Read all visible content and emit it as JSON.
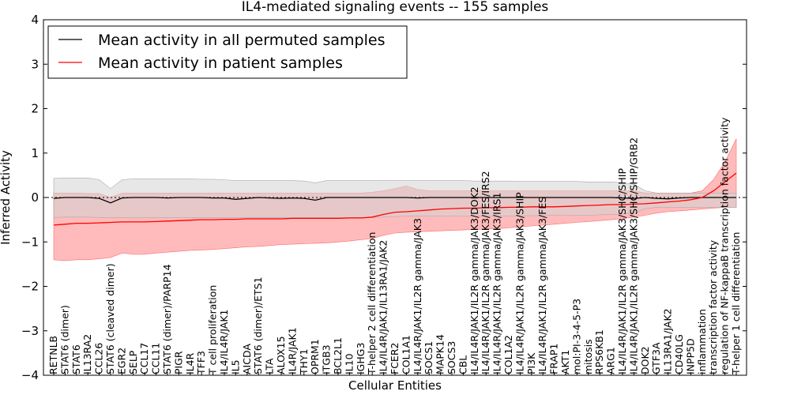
{
  "chart_data": {
    "type": "line",
    "title": "IL4-mediated signaling events -- 155 samples",
    "xlabel": "Cellular Entities",
    "ylabel": "Inferred Activity",
    "ylim": [
      -4,
      4
    ],
    "yticks": [
      -4,
      -3,
      -2,
      -1,
      0,
      1,
      2,
      3,
      4
    ],
    "legend": {
      "placement": "top-left",
      "entries": [
        {
          "label": "Mean activity in all permuted samples",
          "color": "#000000"
        },
        {
          "label": "Mean activity in patient samples",
          "color": "#ff0000"
        }
      ]
    },
    "entities": [
      "RETNLB",
      "STAT6 (dimer)",
      "STAT6",
      "IL13RA2",
      "CCL26",
      "STAT6 (cleaved dimer)",
      "EGR2",
      "SELP",
      "CCL17",
      "CCL11",
      "STAT6 (dimer)/PARP14",
      "PIGR",
      "IL4R",
      "TFF3",
      "T cell proliferation",
      "IL4/IL4R/JAK1",
      "IL5",
      "AICDA",
      "STAT6 (dimer)/ETS1",
      "LTA",
      "ALOX15",
      "IL4R/JAK1",
      "THY1",
      "OPRM1",
      "ITGB3",
      "BCL2L1",
      "IL10",
      "IGHG3",
      "T-helper 2 cell differentiation",
      "IL4/IL4R/JAK1/IL13RA1/JAK2",
      "FCER2",
      "COL1A1",
      "IL4/IL4R/JAK1/IL2R gamma/JAK3",
      "SOCS1",
      "MAPK14",
      "SOCS3",
      "CBL",
      "IL4/IL4R/JAK1/IL2R gamma/JAK3/DOK2",
      "IL4/IL4R/JAK1/IL2R gamma/JAK3/FES/IRS2",
      "IL4/IL4R/JAK1/IL2R gamma/JAK3/IRS1",
      "COL1A2",
      "IL4/IL4R/JAK1/IL2R gamma/JAK3/SHIP",
      "PI3K",
      "IL4/IL4R/JAK1/IL2R gamma/JAK3/FES",
      "FRAP1",
      "AKT1",
      "mol:PI-3-4-5-P3",
      "mitosis",
      "RPS6KB1",
      "ARG1",
      "IL4/IL4R/JAK1/IL2R gamma/JAK3/SHC/SHIP",
      "IL4/IL4R/JAK1/IL2R gamma/JAK3/SHC/SHIP/GRB2",
      "DOK2",
      "GTF3A",
      "IL13RA1/JAK2",
      "CD40LG",
      "INPP5D",
      "inflammation",
      "transcription factor activity",
      "regulation of NF-kappaB transcription factor activity",
      "T-helper 1 cell differentiation"
    ],
    "series": [
      {
        "name": "Mean activity in patient samples",
        "color": "#ff0000",
        "values": [
          -0.62,
          -0.6,
          -0.58,
          -0.58,
          -0.57,
          -0.56,
          -0.55,
          -0.55,
          -0.55,
          -0.54,
          -0.53,
          -0.52,
          -0.51,
          -0.5,
          -0.5,
          -0.49,
          -0.49,
          -0.48,
          -0.48,
          -0.48,
          -0.48,
          -0.47,
          -0.47,
          -0.47,
          -0.47,
          -0.47,
          -0.46,
          -0.46,
          -0.44,
          -0.38,
          -0.33,
          -0.32,
          -0.3,
          -0.28,
          -0.26,
          -0.25,
          -0.24,
          -0.24,
          -0.23,
          -0.23,
          -0.22,
          -0.22,
          -0.21,
          -0.21,
          -0.21,
          -0.2,
          -0.19,
          -0.18,
          -0.17,
          -0.16,
          -0.16,
          -0.15,
          -0.14,
          -0.12,
          -0.1,
          -0.08,
          -0.05,
          0.0,
          0.15,
          0.35,
          0.55
        ],
        "upper": [
          0.1,
          0.1,
          0.1,
          0.09,
          0.09,
          0.0,
          0.1,
          0.1,
          0.1,
          0.1,
          0.1,
          0.1,
          0.1,
          0.1,
          0.1,
          0.1,
          0.1,
          0.1,
          0.1,
          0.1,
          0.1,
          0.1,
          0.1,
          0.1,
          0.1,
          0.1,
          0.1,
          0.1,
          0.12,
          0.15,
          0.2,
          0.26,
          0.18,
          0.15,
          0.15,
          0.15,
          0.15,
          0.15,
          0.15,
          0.15,
          0.15,
          0.15,
          0.15,
          0.15,
          0.15,
          0.15,
          0.15,
          0.15,
          0.15,
          0.15,
          0.15,
          0.15,
          0.1,
          0.1,
          0.1,
          0.1,
          0.1,
          0.15,
          0.4,
          0.8,
          1.32
        ],
        "lower": [
          -1.4,
          -1.42,
          -1.4,
          -1.4,
          -1.38,
          -1.35,
          -1.25,
          -1.28,
          -1.28,
          -1.25,
          -1.23,
          -1.21,
          -1.19,
          -1.18,
          -1.17,
          -1.15,
          -1.13,
          -1.11,
          -1.1,
          -1.08,
          -1.06,
          -1.05,
          -1.04,
          -1.03,
          -1.02,
          -1.0,
          -0.98,
          -0.95,
          -0.92,
          -0.85,
          -0.8,
          -0.78,
          -0.77,
          -0.76,
          -0.75,
          -0.74,
          -0.73,
          -0.72,
          -0.71,
          -0.7,
          -0.68,
          -0.66,
          -0.64,
          -0.62,
          -0.6,
          -0.58,
          -0.56,
          -0.54,
          -0.52,
          -0.5,
          -0.48,
          -0.44,
          -0.4,
          -0.35,
          -0.32,
          -0.3,
          -0.28,
          -0.26,
          -0.24,
          -0.22,
          -0.22
        ]
      },
      {
        "name": "Mean activity in all permuted samples",
        "color": "#000000",
        "values": [
          -0.02,
          0.0,
          0.0,
          0.0,
          -0.02,
          -0.12,
          -0.01,
          0.0,
          0.0,
          0.0,
          -0.01,
          0.0,
          0.0,
          0.0,
          -0.01,
          -0.01,
          -0.04,
          -0.02,
          0.0,
          -0.01,
          -0.02,
          -0.01,
          -0.02,
          -0.06,
          0.0,
          0.0,
          0.0,
          0.0,
          0.0,
          0.0,
          0.0,
          0.0,
          -0.01,
          0.0,
          0.0,
          0.0,
          0.0,
          0.0,
          0.0,
          0.0,
          0.0,
          0.0,
          0.0,
          0.0,
          0.0,
          0.0,
          0.0,
          0.0,
          0.0,
          0.0,
          -0.01,
          -0.02,
          0.0,
          -0.02,
          -0.03,
          -0.01,
          0.0,
          0.0,
          0.0,
          0.0,
          0.0
        ],
        "upper": [
          0.43,
          0.44,
          0.44,
          0.44,
          0.4,
          0.2,
          0.4,
          0.42,
          0.42,
          0.42,
          0.42,
          0.42,
          0.42,
          0.41,
          0.41,
          0.4,
          0.38,
          0.38,
          0.38,
          0.38,
          0.38,
          0.38,
          0.37,
          0.33,
          0.38,
          0.38,
          0.38,
          0.38,
          0.38,
          0.38,
          0.38,
          0.38,
          0.38,
          0.38,
          0.38,
          0.38,
          0.38,
          0.37,
          0.37,
          0.37,
          0.37,
          0.36,
          0.36,
          0.36,
          0.36,
          0.36,
          0.36,
          0.35,
          0.35,
          0.35,
          0.33,
          0.3,
          0.15,
          0.1,
          0.1,
          0.1,
          0.1,
          0.1,
          0.1,
          0.1,
          0.1
        ],
        "lower": [
          -0.45,
          -0.44,
          -0.44,
          -0.44,
          -0.45,
          -0.45,
          -0.45,
          -0.45,
          -0.45,
          -0.45,
          -0.45,
          -0.45,
          -0.45,
          -0.45,
          -0.45,
          -0.45,
          -0.45,
          -0.45,
          -0.45,
          -0.45,
          -0.45,
          -0.45,
          -0.45,
          -0.45,
          -0.45,
          -0.45,
          -0.45,
          -0.45,
          -0.45,
          -0.44,
          -0.43,
          -0.42,
          -0.42,
          -0.42,
          -0.42,
          -0.42,
          -0.42,
          -0.42,
          -0.42,
          -0.42,
          -0.42,
          -0.41,
          -0.41,
          -0.41,
          -0.4,
          -0.4,
          -0.4,
          -0.4,
          -0.39,
          -0.38,
          -0.37,
          -0.35,
          -0.25,
          -0.22,
          -0.22,
          -0.22,
          -0.22,
          -0.22,
          -0.22,
          -0.22,
          -0.22
        ]
      }
    ]
  }
}
